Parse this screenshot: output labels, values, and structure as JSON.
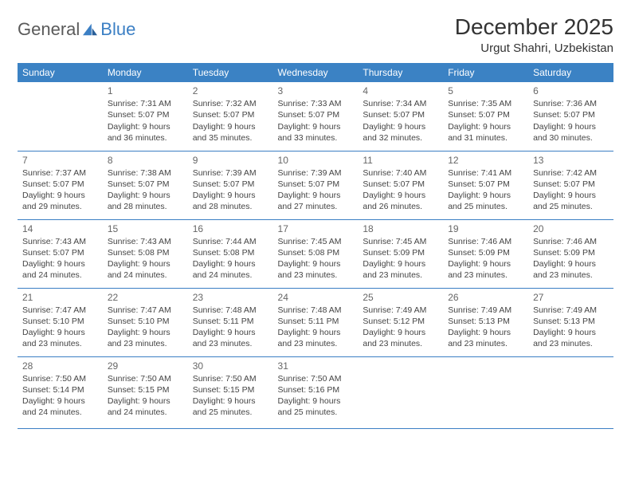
{
  "logo": {
    "text1": "General",
    "text2": "Blue"
  },
  "title": "December 2025",
  "location": "Urgut Shahri, Uzbekistan",
  "colors": {
    "header_bg": "#3b82c4",
    "header_text": "#ffffff",
    "rule": "#3b7fc4",
    "text": "#444444",
    "page_bg": "#ffffff"
  },
  "typography": {
    "title_fontsize": 28,
    "location_fontsize": 15,
    "dayheader_fontsize": 12,
    "body_fontsize": 10.5,
    "daynum_fontsize": 12
  },
  "day_headers": [
    "Sunday",
    "Monday",
    "Tuesday",
    "Wednesday",
    "Thursday",
    "Friday",
    "Saturday"
  ],
  "weeks": [
    [
      null,
      {
        "n": "1",
        "sr": "7:31 AM",
        "ss": "5:07 PM",
        "dl": "9 hours and 36 minutes."
      },
      {
        "n": "2",
        "sr": "7:32 AM",
        "ss": "5:07 PM",
        "dl": "9 hours and 35 minutes."
      },
      {
        "n": "3",
        "sr": "7:33 AM",
        "ss": "5:07 PM",
        "dl": "9 hours and 33 minutes."
      },
      {
        "n": "4",
        "sr": "7:34 AM",
        "ss": "5:07 PM",
        "dl": "9 hours and 32 minutes."
      },
      {
        "n": "5",
        "sr": "7:35 AM",
        "ss": "5:07 PM",
        "dl": "9 hours and 31 minutes."
      },
      {
        "n": "6",
        "sr": "7:36 AM",
        "ss": "5:07 PM",
        "dl": "9 hours and 30 minutes."
      }
    ],
    [
      {
        "n": "7",
        "sr": "7:37 AM",
        "ss": "5:07 PM",
        "dl": "9 hours and 29 minutes."
      },
      {
        "n": "8",
        "sr": "7:38 AM",
        "ss": "5:07 PM",
        "dl": "9 hours and 28 minutes."
      },
      {
        "n": "9",
        "sr": "7:39 AM",
        "ss": "5:07 PM",
        "dl": "9 hours and 28 minutes."
      },
      {
        "n": "10",
        "sr": "7:39 AM",
        "ss": "5:07 PM",
        "dl": "9 hours and 27 minutes."
      },
      {
        "n": "11",
        "sr": "7:40 AM",
        "ss": "5:07 PM",
        "dl": "9 hours and 26 minutes."
      },
      {
        "n": "12",
        "sr": "7:41 AM",
        "ss": "5:07 PM",
        "dl": "9 hours and 25 minutes."
      },
      {
        "n": "13",
        "sr": "7:42 AM",
        "ss": "5:07 PM",
        "dl": "9 hours and 25 minutes."
      }
    ],
    [
      {
        "n": "14",
        "sr": "7:43 AM",
        "ss": "5:07 PM",
        "dl": "9 hours and 24 minutes."
      },
      {
        "n": "15",
        "sr": "7:43 AM",
        "ss": "5:08 PM",
        "dl": "9 hours and 24 minutes."
      },
      {
        "n": "16",
        "sr": "7:44 AM",
        "ss": "5:08 PM",
        "dl": "9 hours and 24 minutes."
      },
      {
        "n": "17",
        "sr": "7:45 AM",
        "ss": "5:08 PM",
        "dl": "9 hours and 23 minutes."
      },
      {
        "n": "18",
        "sr": "7:45 AM",
        "ss": "5:09 PM",
        "dl": "9 hours and 23 minutes."
      },
      {
        "n": "19",
        "sr": "7:46 AM",
        "ss": "5:09 PM",
        "dl": "9 hours and 23 minutes."
      },
      {
        "n": "20",
        "sr": "7:46 AM",
        "ss": "5:09 PM",
        "dl": "9 hours and 23 minutes."
      }
    ],
    [
      {
        "n": "21",
        "sr": "7:47 AM",
        "ss": "5:10 PM",
        "dl": "9 hours and 23 minutes."
      },
      {
        "n": "22",
        "sr": "7:47 AM",
        "ss": "5:10 PM",
        "dl": "9 hours and 23 minutes."
      },
      {
        "n": "23",
        "sr": "7:48 AM",
        "ss": "5:11 PM",
        "dl": "9 hours and 23 minutes."
      },
      {
        "n": "24",
        "sr": "7:48 AM",
        "ss": "5:11 PM",
        "dl": "9 hours and 23 minutes."
      },
      {
        "n": "25",
        "sr": "7:49 AM",
        "ss": "5:12 PM",
        "dl": "9 hours and 23 minutes."
      },
      {
        "n": "26",
        "sr": "7:49 AM",
        "ss": "5:13 PM",
        "dl": "9 hours and 23 minutes."
      },
      {
        "n": "27",
        "sr": "7:49 AM",
        "ss": "5:13 PM",
        "dl": "9 hours and 23 minutes."
      }
    ],
    [
      {
        "n": "28",
        "sr": "7:50 AM",
        "ss": "5:14 PM",
        "dl": "9 hours and 24 minutes."
      },
      {
        "n": "29",
        "sr": "7:50 AM",
        "ss": "5:15 PM",
        "dl": "9 hours and 24 minutes."
      },
      {
        "n": "30",
        "sr": "7:50 AM",
        "ss": "5:15 PM",
        "dl": "9 hours and 25 minutes."
      },
      {
        "n": "31",
        "sr": "7:50 AM",
        "ss": "5:16 PM",
        "dl": "9 hours and 25 minutes."
      },
      null,
      null,
      null
    ]
  ],
  "labels": {
    "sunrise": "Sunrise:",
    "sunset": "Sunset:",
    "daylight": "Daylight:"
  }
}
